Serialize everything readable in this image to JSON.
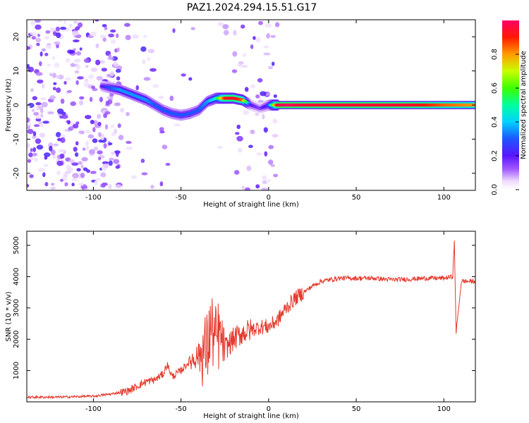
{
  "title": "PAZ1.2024.294.15.51.G17",
  "chart_data": [
    {
      "type": "heatmap",
      "xlabel": "Height of straight line (km)",
      "ylabel": "Frequency (Hz)",
      "xlim": [
        -138,
        118
      ],
      "ylim": [
        -25,
        25
      ],
      "xticks": [
        -100,
        -50,
        0,
        50,
        100
      ],
      "yticks": [
        -20,
        -10,
        0,
        10,
        20
      ],
      "colorbar": {
        "label": "Normalized spectral amplitude",
        "range": [
          0,
          1
        ],
        "ticks": [
          0.0,
          0.2,
          0.4,
          0.6,
          0.8
        ]
      },
      "ridge": {
        "x": [
          -95,
          -90,
          -85,
          -80,
          -75,
          -70,
          -65,
          -60,
          -55,
          -50,
          -45,
          -40,
          -35,
          -30,
          -25,
          -20,
          -15,
          -10,
          -5,
          0,
          5,
          10,
          20,
          40,
          60,
          80,
          100,
          118
        ],
        "y": [
          5.5,
          5,
          4.5,
          3.5,
          2.5,
          1.5,
          0,
          -1.5,
          -2.5,
          -3,
          -2.5,
          -1.5,
          1,
          2,
          2,
          2,
          1.5,
          0,
          -1,
          0,
          0,
          0,
          0,
          0,
          0,
          0,
          0,
          0
        ],
        "amplitude": [
          0.2,
          0.3,
          0.35,
          0.35,
          0.35,
          0.35,
          0.3,
          0.3,
          0.3,
          0.3,
          0.3,
          0.3,
          0.35,
          0.45,
          0.9,
          0.95,
          0.85,
          0.2,
          0.15,
          0.25,
          0.95,
          1,
          0.95,
          0.95,
          0.95,
          0.95,
          0.85,
          0.8
        ]
      }
    },
    {
      "type": "line",
      "xlabel": "Height of straight line (km)",
      "ylabel": "SNR (10 * v/v)",
      "xlim": [
        -138,
        118
      ],
      "ylim": [
        0,
        5450
      ],
      "xticks": [
        -100,
        -50,
        0,
        50,
        100
      ],
      "yticks": [
        1000,
        2000,
        3000,
        4000,
        5000
      ],
      "series": [
        {
          "color": "#e53a2e",
          "x": [
            -138,
            -120,
            -100,
            -90,
            -80,
            -75,
            -70,
            -65,
            -60,
            -58,
            -55,
            -50,
            -45,
            -40,
            -35,
            -33,
            -30,
            -28,
            -25,
            -20,
            -15,
            -10,
            -5,
            0,
            5,
            10,
            15,
            20,
            25,
            30,
            35,
            40,
            50,
            60,
            70,
            80,
            90,
            100,
            105,
            106,
            107,
            110,
            118
          ],
          "values": [
            150,
            150,
            180,
            250,
            350,
            500,
            650,
            700,
            900,
            1200,
            800,
            1000,
            1300,
            1500,
            1700,
            2400,
            1900,
            2200,
            1700,
            2000,
            2200,
            2300,
            2400,
            2400,
            2600,
            3000,
            3300,
            3500,
            3700,
            3850,
            3900,
            3950,
            3950,
            3950,
            3900,
            3920,
            3950,
            3950,
            4000,
            5100,
            2200,
            3850,
            3850
          ]
        }
      ]
    }
  ]
}
